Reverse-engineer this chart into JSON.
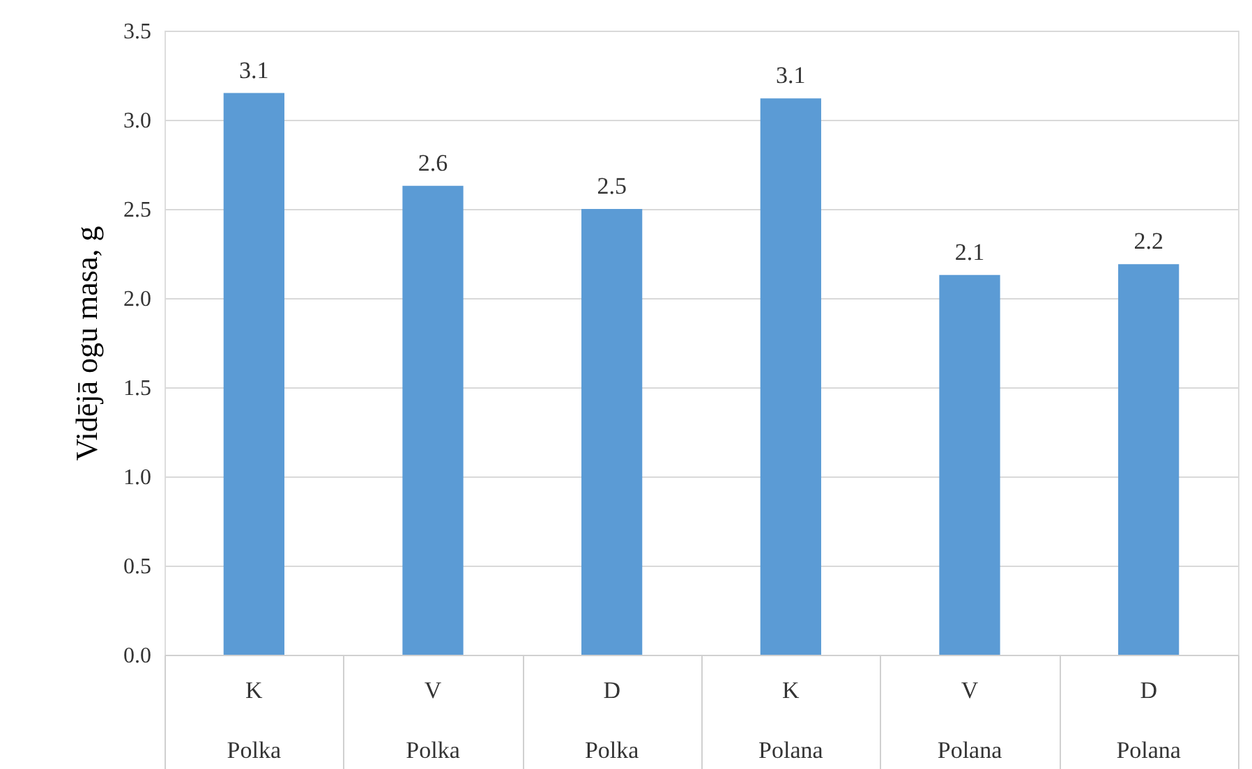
{
  "chart_data": {
    "type": "bar",
    "ylabel": "Vidējā ogu masa, g",
    "categories": [
      "K\nPolka",
      "V\nPolka",
      "D\nPolka",
      "K\nPolana",
      "V\nPolana",
      "D\nPolana"
    ],
    "values": [
      3.15,
      2.63,
      2.5,
      3.12,
      2.13,
      2.19
    ],
    "value_labels": [
      "3.1",
      "2.6",
      "2.5",
      "3.1",
      "2.1",
      "2.2"
    ],
    "color": "#5b9bd5",
    "ylim": [
      0,
      3.5
    ],
    "yticks": [
      {
        "value": 0,
        "label": "0.0"
      },
      0.5,
      {
        "value": 1,
        "label": "1.0"
      },
      1.5,
      {
        "value": 2,
        "label": "2.0"
      },
      2.5,
      {
        "value": 3,
        "label": "3.0"
      },
      3.5
    ],
    "grid": "y"
  }
}
